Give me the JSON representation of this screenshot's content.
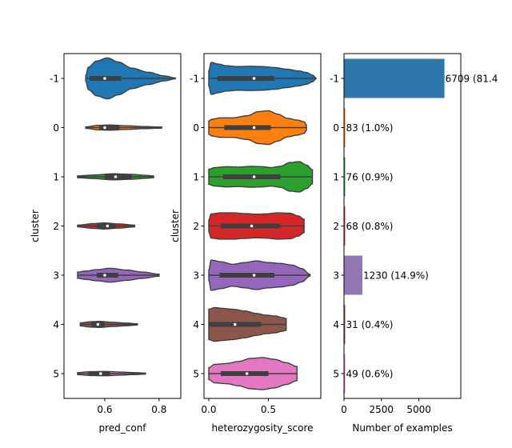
{
  "chart_data": [
    {
      "type": "violin",
      "xlabel": "pred_conf",
      "ylabel": "cluster",
      "xlim": [
        0.45,
        0.88
      ],
      "xticks": [
        0.6,
        0.8
      ],
      "categories": [
        "-1",
        "0",
        "1",
        "2",
        "3",
        "4",
        "5"
      ],
      "colors": [
        "#1f77b4",
        "#ff7f0e",
        "#2ca02c",
        "#d62728",
        "#9467bd",
        "#8c564b",
        "#e377c2"
      ],
      "groups": [
        {
          "cluster": "-1",
          "min": 0.53,
          "q1": 0.545,
          "median": 0.6,
          "q3": 0.66,
          "max": 0.86,
          "width": 0.95,
          "profile": [
            [
              0.53,
              0.15
            ],
            [
              0.54,
              0.55
            ],
            [
              0.57,
              0.85
            ],
            [
              0.61,
              1.0
            ],
            [
              0.65,
              0.8
            ],
            [
              0.7,
              0.5
            ],
            [
              0.76,
              0.3
            ],
            [
              0.82,
              0.12
            ],
            [
              0.86,
              0.02
            ]
          ]
        },
        {
          "cluster": "0",
          "min": 0.53,
          "q1": 0.58,
          "median": 0.6,
          "q3": 0.655,
          "max": 0.81,
          "width": 0.12,
          "profile": [
            [
              0.53,
              0.3
            ],
            [
              0.58,
              0.9
            ],
            [
              0.62,
              1.0
            ],
            [
              0.68,
              0.7
            ],
            [
              0.75,
              0.4
            ],
            [
              0.81,
              0.2
            ]
          ]
        },
        {
          "cluster": "1",
          "min": 0.5,
          "q1": 0.6,
          "median": 0.64,
          "q3": 0.7,
          "max": 0.78,
          "width": 0.14,
          "profile": [
            [
              0.5,
              0.3
            ],
            [
              0.56,
              0.6
            ],
            [
              0.63,
              1.0
            ],
            [
              0.7,
              0.8
            ],
            [
              0.75,
              0.5
            ],
            [
              0.78,
              0.3
            ]
          ]
        },
        {
          "cluster": "2",
          "min": 0.5,
          "q1": 0.57,
          "median": 0.61,
          "q3": 0.64,
          "max": 0.71,
          "width": 0.14,
          "profile": [
            [
              0.5,
              0.3
            ],
            [
              0.56,
              0.8
            ],
            [
              0.6,
              1.0
            ],
            [
              0.65,
              0.7
            ],
            [
              0.71,
              0.3
            ]
          ]
        },
        {
          "cluster": "3",
          "min": 0.5,
          "q1": 0.57,
          "median": 0.6,
          "q3": 0.65,
          "max": 0.8,
          "width": 0.32,
          "profile": [
            [
              0.5,
              0.45
            ],
            [
              0.53,
              0.6
            ],
            [
              0.57,
              0.8
            ],
            [
              0.62,
              1.0
            ],
            [
              0.68,
              0.75
            ],
            [
              0.74,
              0.45
            ],
            [
              0.8,
              0.15
            ]
          ]
        },
        {
          "cluster": "4",
          "min": 0.51,
          "q1": 0.55,
          "median": 0.575,
          "q3": 0.6,
          "max": 0.72,
          "width": 0.14,
          "profile": [
            [
              0.51,
              0.5
            ],
            [
              0.55,
              0.9
            ],
            [
              0.58,
              1.0
            ],
            [
              0.63,
              0.7
            ],
            [
              0.68,
              0.45
            ],
            [
              0.72,
              0.2
            ]
          ]
        },
        {
          "cluster": "5",
          "min": 0.5,
          "q1": 0.54,
          "median": 0.585,
          "q3": 0.62,
          "max": 0.75,
          "width": 0.1,
          "profile": [
            [
              0.5,
              0.5
            ],
            [
              0.55,
              0.9
            ],
            [
              0.6,
              1.0
            ],
            [
              0.66,
              0.7
            ],
            [
              0.71,
              0.45
            ],
            [
              0.75,
              0.25
            ]
          ]
        }
      ]
    },
    {
      "type": "violin",
      "xlabel": "heterozygosity_score",
      "ylabel": "cluster",
      "xlim": [
        -0.04,
        0.94
      ],
      "xticks": [
        0.0,
        0.5
      ],
      "categories": [
        "-1",
        "0",
        "1",
        "2",
        "3",
        "4",
        "5"
      ],
      "colors": [
        "#1f77b4",
        "#ff7f0e",
        "#2ca02c",
        "#d62728",
        "#9467bd",
        "#8c564b",
        "#e377c2"
      ],
      "groups": [
        {
          "cluster": "-1",
          "min": 0.0,
          "q1": 0.07,
          "median": 0.38,
          "q3": 0.55,
          "max": 0.9,
          "width": 0.78,
          "profile": [
            [
              0.0,
              0.45
            ],
            [
              0.02,
              0.95
            ],
            [
              0.08,
              0.85
            ],
            [
              0.15,
              0.75
            ],
            [
              0.25,
              0.7
            ],
            [
              0.35,
              0.72
            ],
            [
              0.45,
              0.7
            ],
            [
              0.55,
              0.65
            ],
            [
              0.65,
              0.55
            ],
            [
              0.75,
              0.45
            ],
            [
              0.82,
              0.35
            ],
            [
              0.87,
              0.2
            ],
            [
              0.9,
              0.03
            ]
          ]
        },
        {
          "cluster": "0",
          "min": 0.0,
          "q1": 0.13,
          "median": 0.38,
          "q3": 0.52,
          "max": 0.82,
          "width": 0.78,
          "profile": [
            [
              0.0,
              0.4
            ],
            [
              0.03,
              0.5
            ],
            [
              0.1,
              0.58
            ],
            [
              0.2,
              0.58
            ],
            [
              0.32,
              0.7
            ],
            [
              0.42,
              0.95
            ],
            [
              0.5,
              1.0
            ],
            [
              0.58,
              0.8
            ],
            [
              0.66,
              0.55
            ],
            [
              0.74,
              0.45
            ],
            [
              0.8,
              0.35
            ],
            [
              0.82,
              0.15
            ]
          ]
        },
        {
          "cluster": "1",
          "min": 0.0,
          "q1": 0.12,
          "median": 0.38,
          "q3": 0.6,
          "max": 0.87,
          "width": 0.78,
          "profile": [
            [
              0.0,
              0.45
            ],
            [
              0.05,
              0.55
            ],
            [
              0.15,
              0.6
            ],
            [
              0.25,
              0.58
            ],
            [
              0.35,
              0.62
            ],
            [
              0.45,
              0.6
            ],
            [
              0.52,
              0.55
            ],
            [
              0.6,
              0.62
            ],
            [
              0.68,
              0.85
            ],
            [
              0.76,
              0.9
            ],
            [
              0.82,
              0.7
            ],
            [
              0.87,
              0.42
            ]
          ]
        },
        {
          "cluster": "2",
          "min": 0.0,
          "q1": 0.1,
          "median": 0.36,
          "q3": 0.6,
          "max": 0.8,
          "width": 0.78,
          "profile": [
            [
              0.0,
              0.35
            ],
            [
              0.02,
              0.72
            ],
            [
              0.1,
              0.78
            ],
            [
              0.2,
              0.78
            ],
            [
              0.3,
              0.74
            ],
            [
              0.4,
              0.7
            ],
            [
              0.48,
              0.72
            ],
            [
              0.58,
              0.78
            ],
            [
              0.68,
              0.76
            ],
            [
              0.75,
              0.6
            ],
            [
              0.8,
              0.4
            ]
          ]
        },
        {
          "cluster": "3",
          "min": 0.0,
          "q1": 0.09,
          "median": 0.38,
          "q3": 0.55,
          "max": 0.85,
          "width": 0.78,
          "profile": [
            [
              0.0,
              0.3
            ],
            [
              0.02,
              0.9
            ],
            [
              0.1,
              0.8
            ],
            [
              0.2,
              0.65
            ],
            [
              0.3,
              0.75
            ],
            [
              0.4,
              0.85
            ],
            [
              0.5,
              0.75
            ],
            [
              0.6,
              0.7
            ],
            [
              0.7,
              0.6
            ],
            [
              0.78,
              0.4
            ],
            [
              0.85,
              0.05
            ]
          ]
        },
        {
          "cluster": "4",
          "min": 0.0,
          "q1": 0.0,
          "median": 0.22,
          "q3": 0.44,
          "max": 0.65,
          "width": 0.78,
          "profile": [
            [
              0.0,
              0.9
            ],
            [
              0.05,
              1.0
            ],
            [
              0.12,
              0.95
            ],
            [
              0.2,
              0.9
            ],
            [
              0.3,
              0.8
            ],
            [
              0.4,
              0.65
            ],
            [
              0.48,
              0.55
            ],
            [
              0.56,
              0.5
            ],
            [
              0.62,
              0.4
            ],
            [
              0.65,
              0.35
            ]
          ]
        },
        {
          "cluster": "5",
          "min": 0.0,
          "q1": 0.1,
          "median": 0.32,
          "q3": 0.5,
          "max": 0.74,
          "width": 0.78,
          "profile": [
            [
              0.0,
              0.35
            ],
            [
              0.05,
              0.55
            ],
            [
              0.15,
              0.6
            ],
            [
              0.25,
              0.72
            ],
            [
              0.35,
              0.9
            ],
            [
              0.45,
              0.95
            ],
            [
              0.55,
              0.85
            ],
            [
              0.65,
              0.65
            ],
            [
              0.74,
              0.42
            ]
          ]
        }
      ]
    },
    {
      "type": "bar",
      "orientation": "horizontal",
      "xlabel": "Number of examples",
      "xlim": [
        0,
        7800
      ],
      "xticks": [
        0,
        2500,
        5000
      ],
      "categories": [
        "-1",
        "0",
        "1",
        "2",
        "3",
        "4",
        "5"
      ],
      "values": [
        6709,
        83,
        76,
        68,
        1230,
        31,
        49
      ],
      "labels": [
        "6709 (81.4",
        "83 (1.0%)",
        "76 (0.9%)",
        "68 (0.8%)",
        "1230 (14.9%)",
        "31 (0.4%)",
        "49 (0.6%)"
      ],
      "colors": [
        "#2f76ad",
        "#e97d20",
        "#3a9d3a",
        "#cc3b3b",
        "#9377b5",
        "#8c564b",
        "#e377c2"
      ]
    }
  ]
}
